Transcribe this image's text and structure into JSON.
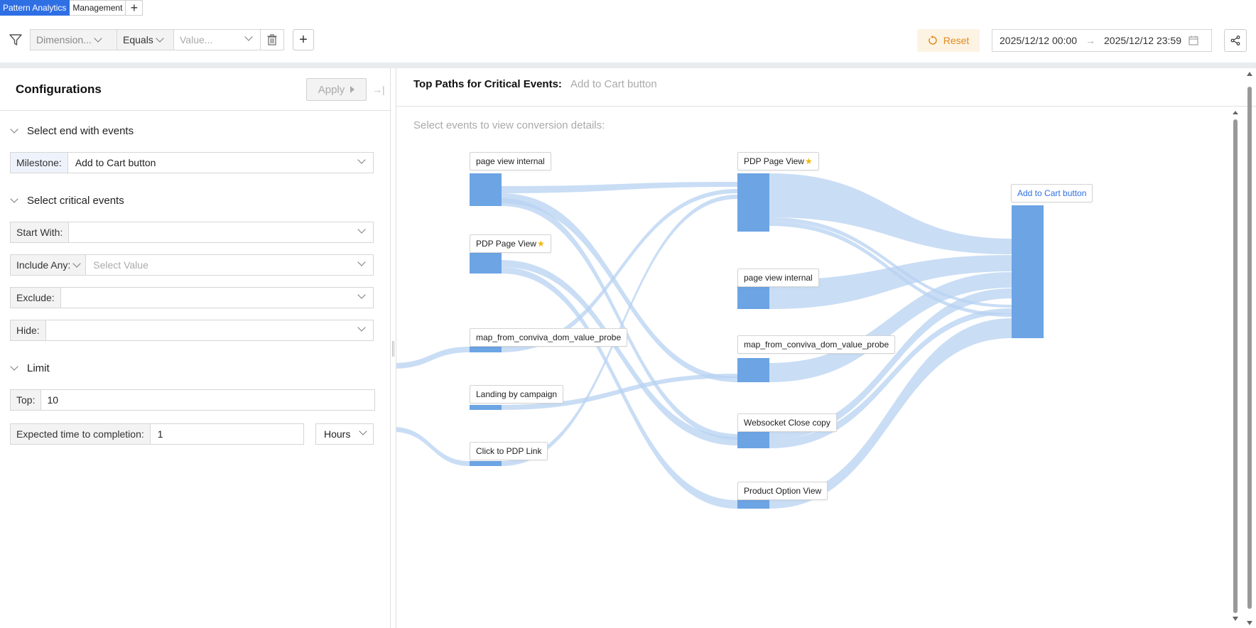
{
  "tabs": [
    "Pattern Analytics",
    "Management",
    "+"
  ],
  "filter": {
    "dimension_placeholder": "Dimension...",
    "operator": "Equals",
    "value_placeholder": "Value...",
    "add_label": "+"
  },
  "toolbar": {
    "reset_label": "Reset",
    "date_start": "2025/12/12 00:00",
    "date_arrow": "→",
    "date_end": "2025/12/12 23:59"
  },
  "config": {
    "title": "Configurations",
    "apply_label": "Apply",
    "section_end": "Select end with events",
    "milestone_label": "Milestone:",
    "milestone_value": "Add to Cart button",
    "section_critical": "Select critical events",
    "start_with_label": "Start With:",
    "start_with_value": "",
    "include_any_label": "Include Any:",
    "include_any_placeholder": "Select Value",
    "exclude_label": "Exclude:",
    "exclude_value": "",
    "hide_label": "Hide:",
    "hide_value": "",
    "section_limit": "Limit",
    "top_label": "Top:",
    "top_value": "10",
    "ettc_label": "Expected time to completion:",
    "ettc_value": "1",
    "ettc_unit": "Hours"
  },
  "chart_panel": {
    "title": "Top Paths for Critical Events:",
    "subtitle": "Add to Cart button",
    "hint": "Select events to view conversion details:"
  },
  "chart_data": {
    "type": "sankey",
    "columns": [
      [
        "page view internal",
        "PDP Page View",
        "map_from_conviva_dom_value_probe",
        "Landing by campaign",
        "Click to PDP Link"
      ],
      [
        "PDP Page View",
        "page view internal",
        "map_from_conviva_dom_value_probe",
        "Websocket Close copy",
        "Product Option View"
      ],
      [
        "Add to Cart button"
      ]
    ],
    "starred": [
      "PDP Page View"
    ],
    "colors": {
      "node": "#6ca4e4",
      "link": "#b7d1f1"
    }
  }
}
